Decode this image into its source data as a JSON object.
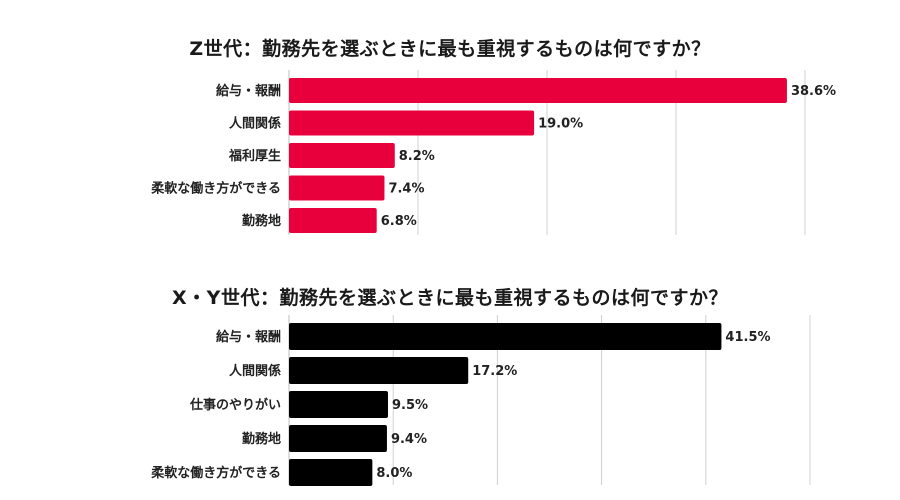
{
  "chart_data": [
    {
      "type": "bar",
      "orientation": "horizontal",
      "title": "Z世代：勤務先を選ぶときに最も重視するものは何ですか？",
      "categories": [
        "給与・報酬",
        "人間関係",
        "福利厚生",
        "柔軟な働き方ができる",
        "勤務地"
      ],
      "values": [
        38.6,
        19.0,
        8.2,
        7.4,
        6.8
      ],
      "value_labels": [
        "38.6%",
        "19.0%",
        "8.2%",
        "7.4%",
        "6.8%"
      ],
      "unit": "%",
      "xlim": [
        0,
        40
      ],
      "grid": true,
      "color": "#e8003d"
    },
    {
      "type": "bar",
      "orientation": "horizontal",
      "title": "X・Y世代：勤務先を選ぶときに最も重視するものは何ですか？",
      "categories": [
        "給与・報酬",
        "人間関係",
        "仕事のやりがい",
        "勤務地",
        "柔軟な働き方ができる"
      ],
      "values": [
        41.5,
        17.2,
        9.5,
        9.4,
        8.0
      ],
      "value_labels": [
        "41.5%",
        "17.2%",
        "9.5%",
        "9.4%",
        "8.0%"
      ],
      "unit": "%",
      "xlim": [
        0,
        50
      ],
      "grid": true,
      "color": "#000000"
    }
  ]
}
